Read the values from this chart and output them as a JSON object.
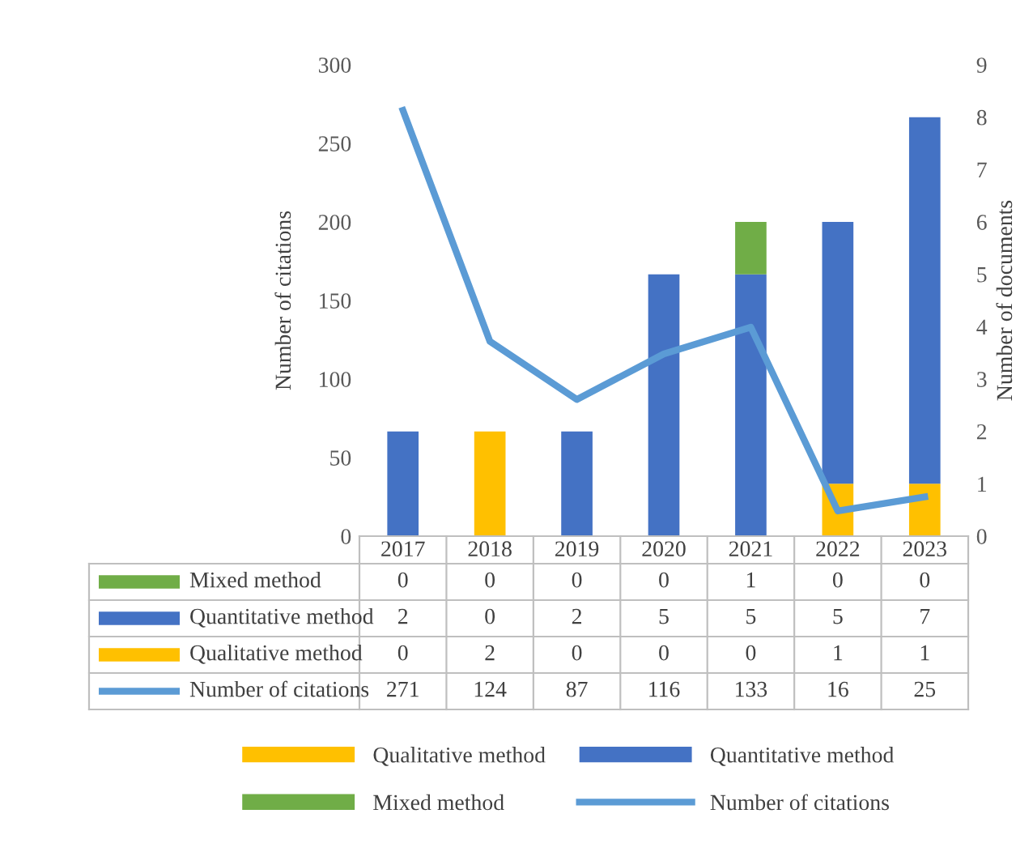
{
  "chart_data": {
    "type": "bar",
    "stacked": true,
    "ylabel": "Number of citations",
    "y2label": "Number of documents",
    "categories": [
      "2017",
      "2018",
      "2019",
      "2020",
      "2021",
      "2022",
      "2023"
    ],
    "series": [
      {
        "name": "Qualitative method",
        "axis": "y2",
        "color": "#ffc000",
        "values": [
          0,
          2,
          0,
          0,
          0,
          1,
          1
        ]
      },
      {
        "name": "Quantitative method",
        "axis": "y2",
        "color": "#4472c4",
        "values": [
          2,
          0,
          2,
          5,
          5,
          5,
          7
        ]
      },
      {
        "name": "Mixed method",
        "axis": "y2",
        "color": "#70ad47",
        "values": [
          0,
          0,
          0,
          0,
          1,
          0,
          0
        ]
      },
      {
        "name": "Number of citations",
        "type": "line",
        "axis": "y",
        "color": "#5b9bd5",
        "values": [
          271,
          124,
          87,
          116,
          133,
          16,
          25
        ]
      }
    ],
    "ylim": [
      0,
      300
    ],
    "yticks": [
      0,
      50,
      100,
      150,
      200,
      250,
      300
    ],
    "y2lim": [
      0,
      9
    ],
    "y2ticks": [
      0,
      1,
      2,
      3,
      4,
      5,
      6,
      7,
      8,
      9
    ],
    "grid": false,
    "legend": "bottom",
    "marker": "none",
    "line_style": "solid",
    "data_labels": true
  }
}
